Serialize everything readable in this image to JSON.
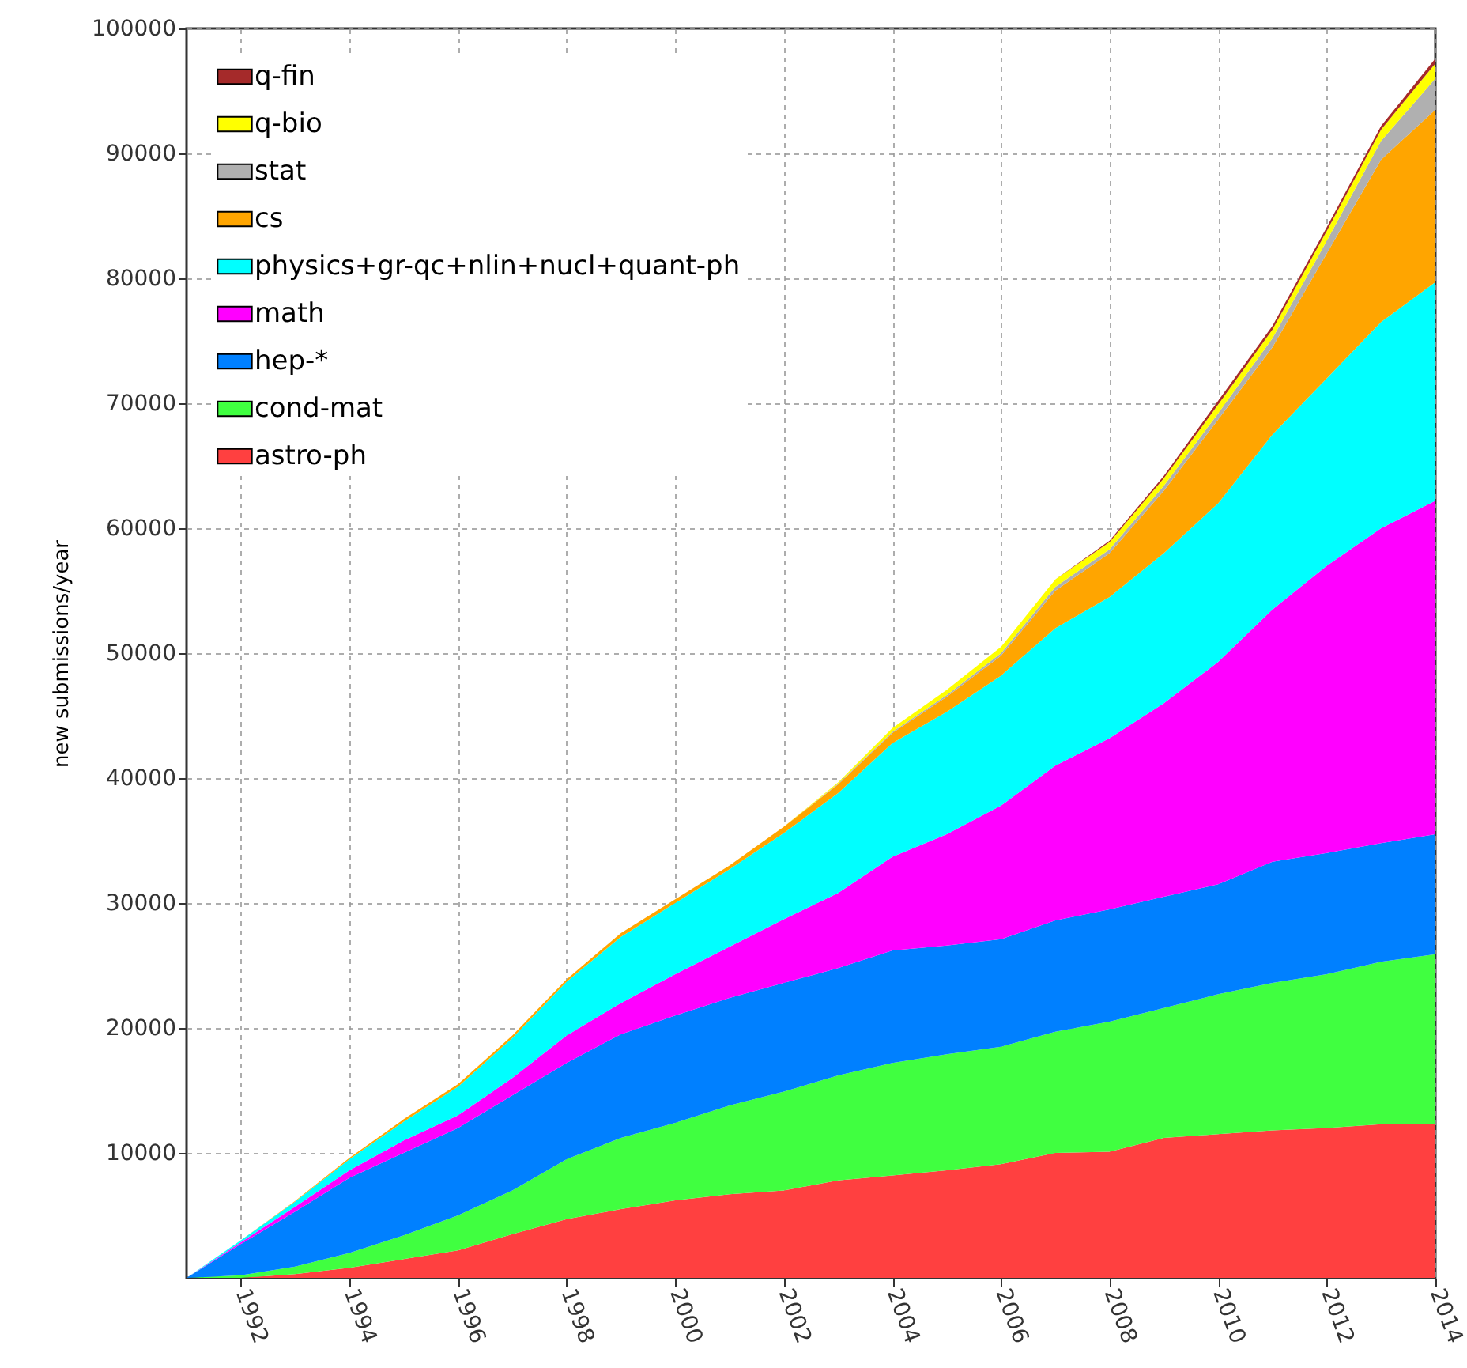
{
  "chart_data": {
    "type": "area",
    "stacked": true,
    "ylabel": "new submissions/year",
    "x": [
      1991,
      1992,
      1993,
      1994,
      1995,
      1996,
      1997,
      1998,
      1999,
      2000,
      2001,
      2002,
      2003,
      2004,
      2005,
      2006,
      2007,
      2008,
      2009,
      2010,
      2011,
      2012,
      2013,
      2014
    ],
    "series": [
      {
        "name": "astro-ph",
        "color": "#ff4040",
        "values": [
          0,
          0,
          300,
          800,
          1500,
          2200,
          3500,
          4700,
          5500,
          6200,
          6700,
          7000,
          7800,
          8200,
          8600,
          9100,
          10000,
          10100,
          11200,
          11500,
          11800,
          12000,
          12300,
          12300
        ]
      },
      {
        "name": "cond-mat",
        "color": "#40ff40",
        "values": [
          0,
          200,
          600,
          1200,
          1900,
          2800,
          3500,
          4800,
          5700,
          6200,
          7100,
          7900,
          8400,
          9000,
          9300,
          9400,
          9700,
          10400,
          10400,
          11200,
          11800,
          12300,
          13000,
          13600
        ]
      },
      {
        "name": "hep-*",
        "color": "#0080ff",
        "values": [
          0,
          2500,
          4400,
          6000,
          6600,
          7000,
          7600,
          7700,
          8300,
          8600,
          8600,
          8700,
          8600,
          9000,
          8700,
          8600,
          8900,
          9000,
          8900,
          8800,
          9700,
          9700,
          9500,
          9600
        ]
      },
      {
        "name": "math",
        "color": "#ff00ff",
        "values": [
          0,
          150,
          400,
          600,
          1000,
          1000,
          1400,
          2200,
          2500,
          3300,
          4100,
          5100,
          6000,
          7500,
          8900,
          10700,
          12400,
          13700,
          15500,
          17800,
          20200,
          23000,
          25200,
          26700
        ]
      },
      {
        "name": "physics+gr-qc+nlin+nucl+quant-ph",
        "color": "#00ffff",
        "values": [
          0,
          150,
          400,
          900,
          1500,
          2300,
          3200,
          4300,
          5300,
          5700,
          6200,
          6900,
          8000,
          9100,
          9800,
          10400,
          11000,
          11300,
          12000,
          12700,
          14000,
          15000,
          16500,
          17500
        ]
      },
      {
        "name": "cs",
        "color": "#ffa500",
        "values": [
          0,
          0,
          50,
          100,
          200,
          200,
          200,
          200,
          300,
          300,
          300,
          500,
          700,
          800,
          1200,
          1600,
          3000,
          3500,
          5000,
          6700,
          7000,
          10000,
          13000,
          13800
        ]
      },
      {
        "name": "stat",
        "color": "#b0b0b0",
        "values": [
          0,
          0,
          0,
          0,
          0,
          0,
          0,
          0,
          0,
          0,
          0,
          0,
          50,
          100,
          150,
          200,
          300,
          300,
          400,
          500,
          700,
          1000,
          1500,
          2500
        ]
      },
      {
        "name": "q-bio",
        "color": "#ffff00",
        "values": [
          0,
          0,
          0,
          0,
          0,
          0,
          0,
          0,
          0,
          0,
          0,
          0,
          100,
          300,
          400,
          500,
          600,
          600,
          600,
          700,
          700,
          800,
          900,
          1200
        ]
      },
      {
        "name": "q-fin",
        "color": "#a52a2a",
        "values": [
          0,
          0,
          0,
          0,
          0,
          0,
          0,
          0,
          0,
          0,
          0,
          0,
          0,
          0,
          0,
          0,
          0,
          100,
          200,
          300,
          300,
          300,
          300,
          400
        ]
      }
    ],
    "xlim": [
      1991,
      2014
    ],
    "xticks": [
      1992,
      1994,
      1996,
      1998,
      2000,
      2002,
      2004,
      2006,
      2008,
      2010,
      2012,
      2014
    ],
    "ylim": [
      0,
      100000
    ],
    "yticks": [
      10000,
      20000,
      30000,
      40000,
      50000,
      60000,
      70000,
      80000,
      90000,
      100000
    ],
    "grid": true,
    "legend": "top left"
  }
}
